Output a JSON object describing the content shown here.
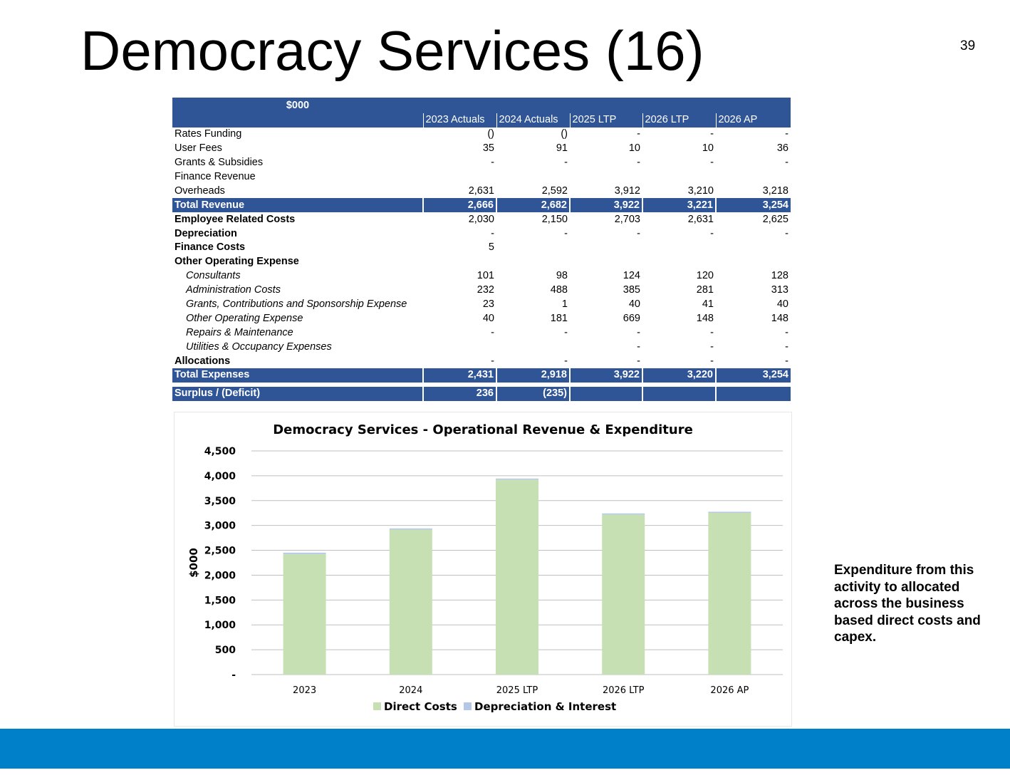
{
  "slide": {
    "title": "Democracy Services (16)",
    "page_number": "39",
    "side_note": "Expenditure from this activity to allocated across the business based direct costs and capex."
  },
  "table": {
    "unit_header": "$000",
    "columns": [
      "2023 Actuals",
      "2024 Actuals",
      "2025 LTP",
      "2026 LTP",
      "2026 AP"
    ],
    "rows": [
      {
        "label": "Rates Funding",
        "values": [
          "()",
          "()",
          "-",
          "-",
          "-"
        ],
        "style": "normal"
      },
      {
        "label": "User Fees",
        "values": [
          "35",
          "91",
          "10",
          "10",
          "36"
        ],
        "style": "normal"
      },
      {
        "label": "Grants & Subsidies",
        "values": [
          "-",
          "-",
          "-",
          "-",
          "-"
        ],
        "style": "normal"
      },
      {
        "label": "Finance Revenue",
        "values": [
          "",
          "",
          "",
          "",
          ""
        ],
        "style": "normal"
      },
      {
        "label": "Overheads",
        "values": [
          "2,631",
          "2,592",
          "3,912",
          "3,210",
          "3,218"
        ],
        "style": "normal"
      },
      {
        "label": "Total Revenue",
        "values": [
          "2,666",
          "2,682",
          "3,922",
          "3,221",
          "3,254"
        ],
        "style": "total"
      },
      {
        "label": "Employee Related Costs",
        "values": [
          "2,030",
          "2,150",
          "2,703",
          "2,631",
          "2,625"
        ],
        "style": "bold"
      },
      {
        "label": "Depreciation",
        "values": [
          "-",
          "-",
          "-",
          "-",
          "-"
        ],
        "style": "bold"
      },
      {
        "label": "Finance Costs",
        "values": [
          "5",
          "",
          "",
          "",
          ""
        ],
        "style": "bold"
      },
      {
        "label": "Other Operating  Expense",
        "values": [
          "",
          "",
          "",
          "",
          ""
        ],
        "style": "bold"
      },
      {
        "label": "Consultants",
        "values": [
          "101",
          "98",
          "124",
          "120",
          "128"
        ],
        "style": "sub"
      },
      {
        "label": "Administration Costs",
        "values": [
          "232",
          "488",
          "385",
          "281",
          "313"
        ],
        "style": "sub"
      },
      {
        "label": "Grants, Contributions and Sponsorship Expense",
        "values": [
          "23",
          "1",
          "40",
          "41",
          "40"
        ],
        "style": "sub"
      },
      {
        "label": "Other Operating Expense",
        "values": [
          "40",
          "181",
          "669",
          "148",
          "148"
        ],
        "style": "sub"
      },
      {
        "label": "Repairs & Maintenance",
        "values": [
          "-",
          "-",
          "-",
          "-",
          "-"
        ],
        "style": "sub"
      },
      {
        "label": "Utilities & Occupancy Expenses",
        "values": [
          "",
          "",
          "-",
          "-",
          "-"
        ],
        "style": "sub"
      },
      {
        "label": "Allocations",
        "values": [
          "-",
          "-",
          "-",
          "-",
          "-"
        ],
        "style": "bold"
      },
      {
        "label": "Total Expenses",
        "values": [
          "2,431",
          "2,918",
          "3,922",
          "3,220",
          "3,254"
        ],
        "style": "total"
      },
      {
        "label": "",
        "values": [
          "",
          "",
          "",
          "",
          ""
        ],
        "style": "spacer"
      },
      {
        "label": "Surplus / (Deficit)",
        "values": [
          "236",
          "(235)",
          "",
          "",
          ""
        ],
        "style": "total"
      }
    ]
  },
  "chart_data": {
    "type": "bar",
    "stacked": true,
    "title": "Democracy Services - Operational Revenue & Expenditure",
    "xlabel": "",
    "ylabel": "$000",
    "ylim": [
      0,
      4500
    ],
    "yticks": [
      0,
      500,
      1000,
      1500,
      2000,
      2500,
      3000,
      3500,
      4000,
      4500
    ],
    "ytick_labels": [
      "-",
      "500",
      "1,000",
      "1,500",
      "2,000",
      "2,500",
      "3,000",
      "3,500",
      "4,000",
      "4,500"
    ],
    "categories": [
      "2023",
      "2024",
      "2025 LTP",
      "2026 LTP",
      "2026 AP"
    ],
    "series": [
      {
        "name": "Direct Costs",
        "values": [
          2426,
          2918,
          3922,
          3220,
          3254
        ],
        "color": "#c6e0b4"
      },
      {
        "name": "Depreciation & Interest",
        "values": [
          5,
          0,
          0,
          0,
          0
        ],
        "color": "#b4c7e7"
      }
    ],
    "grid": true,
    "legend": "bottom"
  },
  "colors": {
    "header_blue": "#2f5597",
    "footer_blue": "#0080c8",
    "gridline": "#bfbfbf"
  }
}
